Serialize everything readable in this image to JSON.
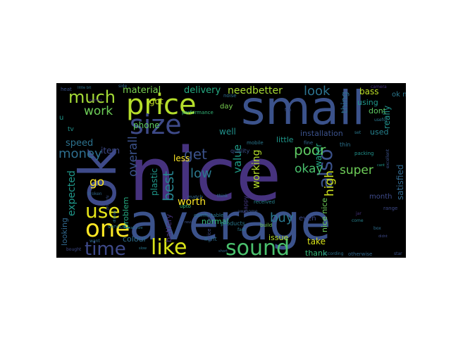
{
  "wordcloud": {
    "background": "#000000",
    "words": [
      {
        "text": "nice",
        "color": "#46327e"
      },
      {
        "text": "average",
        "color": "#3b528b"
      },
      {
        "text": "small",
        "color": "#3b528b"
      },
      {
        "text": "ok",
        "color": "#3e4a89"
      },
      {
        "text": "price",
        "color": "#b5de2b"
      },
      {
        "text": "size",
        "color": "#3e4a89"
      },
      {
        "text": "one",
        "color": "#fde725"
      },
      {
        "text": "use",
        "color": "#e5e419"
      },
      {
        "text": "like",
        "color": "#d8e219"
      },
      {
        "text": "sound",
        "color": "#4ac16d"
      },
      {
        "text": "much",
        "color": "#a5db36"
      },
      {
        "text": "time",
        "color": "#3e4989"
      },
      {
        "text": "also",
        "color": "#3b528b"
      },
      {
        "text": "money",
        "color": "#2e6e8e"
      },
      {
        "text": "best",
        "color": "#26828e"
      },
      {
        "text": "needbetter",
        "color": "#a8db34"
      },
      {
        "text": "look",
        "color": "#2c728e"
      },
      {
        "text": "work",
        "color": "#6ece58"
      },
      {
        "text": "delivery",
        "color": "#25ab82"
      },
      {
        "text": "material",
        "color": "#7ad151"
      },
      {
        "text": "overall",
        "color": "#3b528b"
      },
      {
        "text": "expected",
        "color": "#1f988b"
      },
      {
        "text": "go",
        "color": "#fde725"
      },
      {
        "text": "get",
        "color": "#3b528b"
      },
      {
        "text": "low",
        "color": "#2a788e"
      },
      {
        "text": "poor",
        "color": "#5ec962"
      },
      {
        "text": "okay",
        "color": "#4ac16d"
      },
      {
        "text": "value",
        "color": "#1f9e89"
      },
      {
        "text": "working",
        "color": "#b5de2b"
      },
      {
        "text": "buy",
        "color": "#2a788e"
      },
      {
        "text": "super",
        "color": "#6ece58"
      },
      {
        "text": "high",
        "color": "#cde11d"
      },
      {
        "text": "worth",
        "color": "#fde725"
      },
      {
        "text": "phone",
        "color": "#5ec962"
      },
      {
        "text": "speed",
        "color": "#2c728e"
      },
      {
        "text": "item",
        "color": "#3e4a89"
      },
      {
        "text": "plastic",
        "color": "#1f988b"
      },
      {
        "text": "less",
        "color": "#fde725"
      },
      {
        "text": "battery",
        "color": "#46327e"
      },
      {
        "text": "colour",
        "color": "#2e6e8e"
      },
      {
        "text": "problem",
        "color": "#25ab82"
      },
      {
        "text": "looking",
        "color": "#31688e"
      },
      {
        "text": "normal",
        "color": "#35b779"
      },
      {
        "text": "issue",
        "color": "#b5de2b"
      },
      {
        "text": "water",
        "color": "#22a884"
      },
      {
        "text": "month",
        "color": "#3e4a89"
      },
      {
        "text": "satisfied",
        "color": "#31688e"
      },
      {
        "text": "take",
        "color": "#d8e219"
      },
      {
        "text": "thank",
        "color": "#35b779"
      },
      {
        "text": "bass",
        "color": "#bddf26"
      },
      {
        "text": "thing",
        "color": "#2e6e8e"
      },
      {
        "text": "using",
        "color": "#1f988b"
      },
      {
        "text": "dont",
        "color": "#5ec962"
      },
      {
        "text": "really",
        "color": "#21918c"
      },
      {
        "text": "used",
        "color": "#26828e"
      },
      {
        "text": "installation",
        "color": "#3b528b"
      },
      {
        "text": "little",
        "color": "#1f988b"
      },
      {
        "text": "well",
        "color": "#21918c"
      },
      {
        "text": "day",
        "color": "#7ad151"
      },
      {
        "text": "got",
        "color": "#c2df23"
      },
      {
        "text": "tv",
        "color": "#21918c"
      },
      {
        "text": "u",
        "color": "#1f988b"
      },
      {
        "text": "ok nice",
        "color": "#2a788e"
      },
      {
        "text": "nice nice",
        "color": "#6ece58"
      },
      {
        "text": "even",
        "color": "#3e4a89"
      },
      {
        "text": "products",
        "color": "#2a788e"
      },
      {
        "text": "happy",
        "color": "#443983"
      },
      {
        "text": "light",
        "color": "#2e6e8e"
      },
      {
        "text": "performance",
        "color": "#35b779"
      },
      {
        "text": "service",
        "color": "#2a788e"
      },
      {
        "text": "quality",
        "color": "#3b528b"
      },
      {
        "text": "build",
        "color": "#6ece58"
      },
      {
        "text": "thin",
        "color": "#2c728e"
      },
      {
        "text": "fine",
        "color": "#31688e"
      },
      {
        "text": "received",
        "color": "#26828e"
      },
      {
        "text": "mobile",
        "color": "#2a788e"
      },
      {
        "text": "awesome",
        "color": "#3b528b"
      },
      {
        "text": "fast",
        "color": "#2a788e"
      },
      {
        "text": "think",
        "color": "#2c728e"
      },
      {
        "text": "match",
        "color": "#31688e"
      },
      {
        "text": "comfortable",
        "color": "#2a788e"
      },
      {
        "text": "upto",
        "color": "#35b779"
      },
      {
        "text": "price range",
        "color": "#3e4a89"
      },
      {
        "text": "noise",
        "color": "#2e6e8e"
      },
      {
        "text": "fan",
        "color": "#3b528b"
      },
      {
        "text": "camera",
        "color": "#46327e"
      },
      {
        "text": "useful",
        "color": "#2a788e"
      },
      {
        "text": "excellent",
        "color": "#3b528b"
      },
      {
        "text": "cant",
        "color": "#1f988b"
      },
      {
        "text": "packing",
        "color": "#21918c"
      },
      {
        "text": "range",
        "color": "#3e4a89"
      },
      {
        "text": "box",
        "color": "#2e6e8e"
      },
      {
        "text": "come",
        "color": "#26828e"
      },
      {
        "text": "didnt",
        "color": "#3e4989"
      },
      {
        "text": "otherwise",
        "color": "#31688e"
      },
      {
        "text": "according",
        "color": "#2c728e"
      },
      {
        "text": "star",
        "color": "#3b528b"
      },
      {
        "text": "side",
        "color": "#31688e"
      },
      {
        "text": "little bit",
        "color": "#2c728e"
      },
      {
        "text": "heat",
        "color": "#3b528b"
      },
      {
        "text": "perfect",
        "color": "#46327e"
      },
      {
        "text": "small size",
        "color": "#2c728e"
      },
      {
        "text": "bought",
        "color": "#3e4a89"
      },
      {
        "text": "slow",
        "color": "#2a788e"
      },
      {
        "text": "review",
        "color": "#3b528b"
      },
      {
        "text": "short",
        "color": "#31688e"
      },
      {
        "text": "want",
        "color": "#2e6e8e"
      },
      {
        "text": "broken",
        "color": "#31688e"
      },
      {
        "text": "properly",
        "color": "#3b528b"
      },
      {
        "text": "display",
        "color": "#2c728e"
      },
      {
        "text": "jar",
        "color": "#46327e"
      },
      {
        "text": "worst",
        "color": "#3b528b"
      },
      {
        "text": "set",
        "color": "#2a788e"
      }
    ]
  }
}
